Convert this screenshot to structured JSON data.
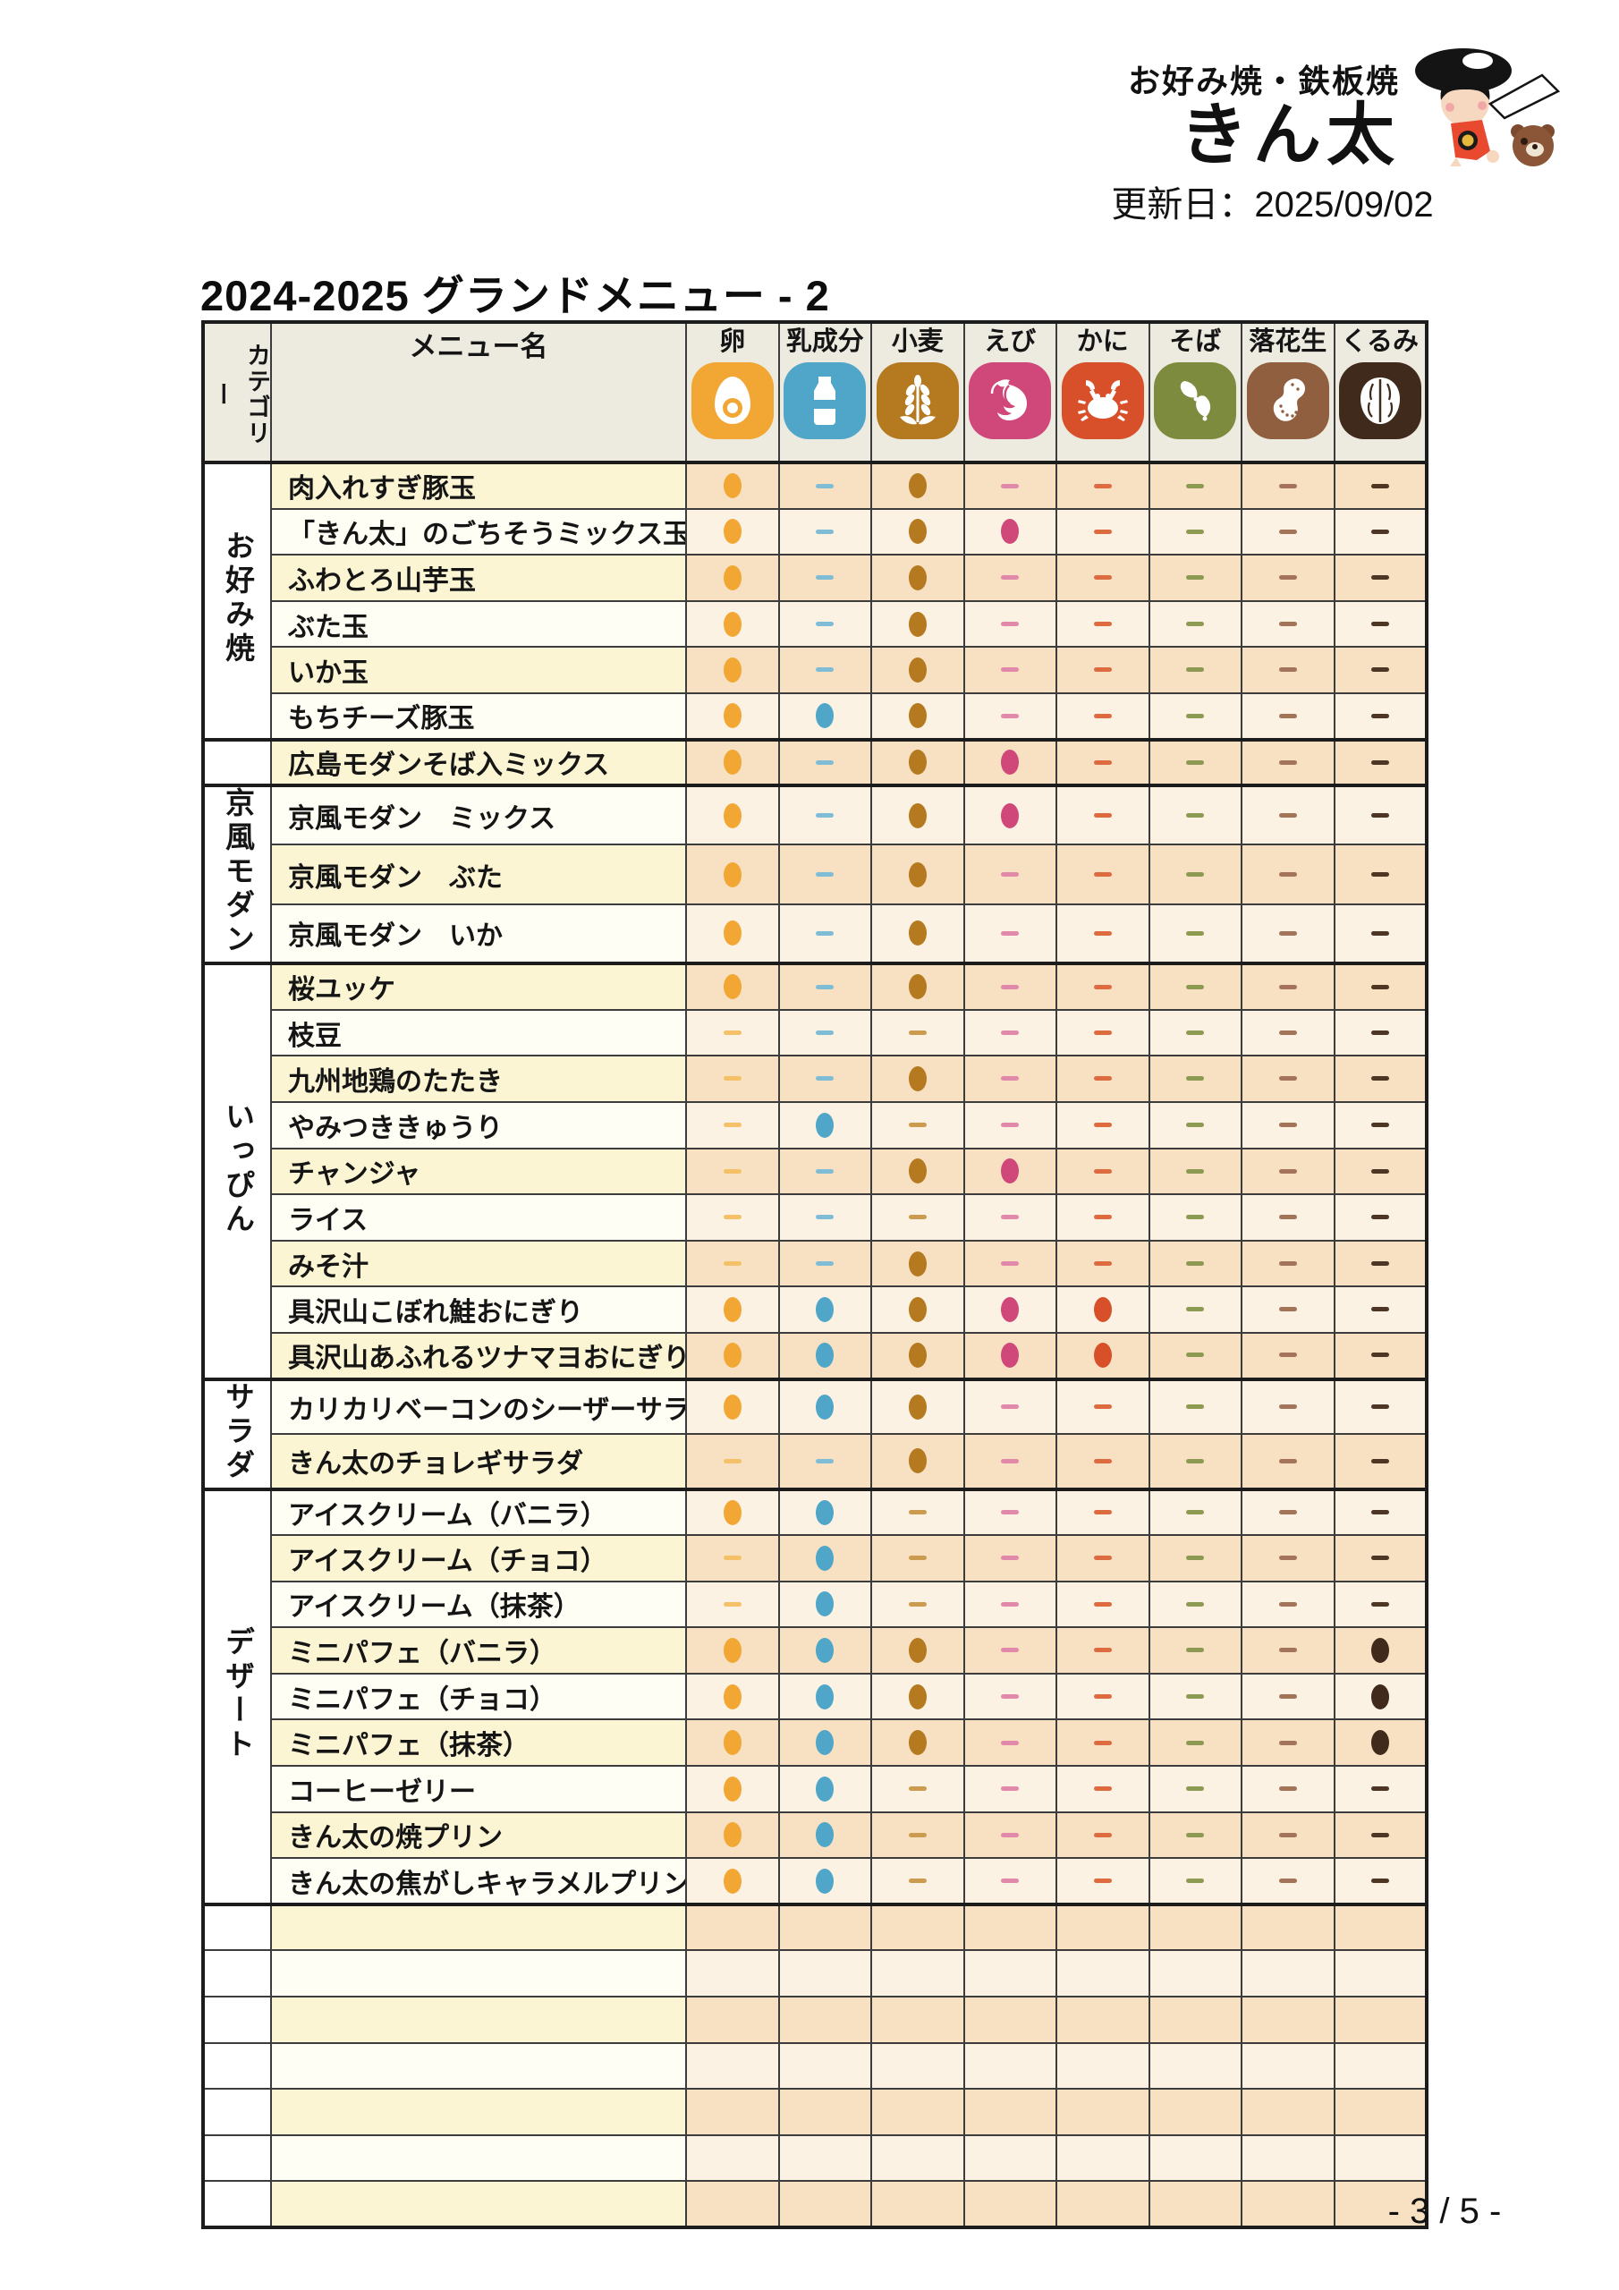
{
  "brand": {
    "subtitle": "お好み焼・鉄板焼",
    "name": "きん太",
    "updated": "更新日：2025/09/02"
  },
  "title": "2024-2025 グランドメニュー - 2",
  "table": {
    "category_header": "カテゴリー",
    "menu_header": "メニュー名",
    "allergens": [
      {
        "key": "egg",
        "label": "卵",
        "color": "#F2A735",
        "dash_color": "#F4C169"
      },
      {
        "key": "milk",
        "label": "乳成分",
        "color": "#4FA6C8",
        "dash_color": "#7FBDD7"
      },
      {
        "key": "wheat",
        "label": "小麦",
        "color": "#B5791F",
        "dash_color": "#CB9C50"
      },
      {
        "key": "shrimp",
        "label": "えび",
        "color": "#D0487A",
        "dash_color": "#E289AB"
      },
      {
        "key": "crab",
        "label": "かに",
        "color": "#D8502A",
        "dash_color": "#DD6B3F"
      },
      {
        "key": "soba",
        "label": "そば",
        "color": "#7C8B3D",
        "dash_color": "#8C9A52"
      },
      {
        "key": "peanut",
        "label": "落花生",
        "color": "#8F5F40",
        "dash_color": "#A3745A"
      },
      {
        "key": "walnut",
        "label": "くるみ",
        "color": "#402A1B",
        "dash_color": "#4E3624"
      }
    ],
    "groups": [
      {
        "category": "お好み焼",
        "items": [
          {
            "name": "肉入れすぎ豚玉",
            "marks": [
              "dot",
              "dash",
              "dot",
              "dash",
              "dash",
              "dash",
              "dash",
              "dash"
            ]
          },
          {
            "name": "「きん太」のごちそうミックス玉",
            "marks": [
              "dot",
              "dash",
              "dot",
              "dot",
              "dash",
              "dash",
              "dash",
              "dash"
            ]
          },
          {
            "name": "ふわとろ山芋玉",
            "marks": [
              "dot",
              "dash",
              "dot",
              "dash",
              "dash",
              "dash",
              "dash",
              "dash"
            ]
          },
          {
            "name": "ぶた玉",
            "marks": [
              "dot",
              "dash",
              "dot",
              "dash",
              "dash",
              "dash",
              "dash",
              "dash"
            ]
          },
          {
            "name": "いか玉",
            "marks": [
              "dot",
              "dash",
              "dot",
              "dash",
              "dash",
              "dash",
              "dash",
              "dash"
            ]
          },
          {
            "name": "もちチーズ豚玉",
            "marks": [
              "dot",
              "dot",
              "dot",
              "dash",
              "dash",
              "dash",
              "dash",
              "dash"
            ]
          }
        ]
      },
      {
        "category": "",
        "items": [
          {
            "name": "広島モダンそば入ミックス",
            "marks": [
              "dot",
              "dash",
              "dot",
              "dot",
              "dash",
              "dash",
              "dash",
              "dash"
            ]
          }
        ]
      },
      {
        "category": "京風モダン",
        "items": [
          {
            "name": "京風モダン　ミックス",
            "marks": [
              "dot",
              "dash",
              "dot",
              "dot",
              "dash",
              "dash",
              "dash",
              "dash"
            ]
          },
          {
            "name": "京風モダン　ぶた",
            "marks": [
              "dot",
              "dash",
              "dot",
              "dash",
              "dash",
              "dash",
              "dash",
              "dash"
            ]
          },
          {
            "name": "京風モダン　いか",
            "marks": [
              "dot",
              "dash",
              "dot",
              "dash",
              "dash",
              "dash",
              "dash",
              "dash"
            ]
          }
        ]
      },
      {
        "category": "いっぴん",
        "items": [
          {
            "name": "桜ユッケ",
            "marks": [
              "dot",
              "dash",
              "dot",
              "dash",
              "dash",
              "dash",
              "dash",
              "dash"
            ]
          },
          {
            "name": "枝豆",
            "marks": [
              "dash",
              "dash",
              "dash",
              "dash",
              "dash",
              "dash",
              "dash",
              "dash"
            ]
          },
          {
            "name": "九州地鶏のたたき",
            "marks": [
              "dash",
              "dash",
              "dot",
              "dash",
              "dash",
              "dash",
              "dash",
              "dash"
            ]
          },
          {
            "name": "やみつききゅうり",
            "marks": [
              "dash",
              "dot",
              "dash",
              "dash",
              "dash",
              "dash",
              "dash",
              "dash"
            ]
          },
          {
            "name": "チャンジャ",
            "marks": [
              "dash",
              "dash",
              "dot",
              "dot",
              "dash",
              "dash",
              "dash",
              "dash"
            ]
          },
          {
            "name": "ライス",
            "marks": [
              "dash",
              "dash",
              "dash",
              "dash",
              "dash",
              "dash",
              "dash",
              "dash"
            ]
          },
          {
            "name": "みそ汁",
            "marks": [
              "dash",
              "dash",
              "dot",
              "dash",
              "dash",
              "dash",
              "dash",
              "dash"
            ]
          },
          {
            "name": "具沢山こぼれ鮭おにぎり",
            "marks": [
              "dot",
              "dot",
              "dot",
              "dot",
              "dot",
              "dash",
              "dash",
              "dash"
            ]
          },
          {
            "name": "具沢山あふれるツナマヨおにぎり",
            "marks": [
              "dot",
              "dot",
              "dot",
              "dot",
              "dot",
              "dash",
              "dash",
              "dash"
            ]
          }
        ]
      },
      {
        "category": "サラダ",
        "items": [
          {
            "name": "カリカリベーコンのシーザーサラダ",
            "marks": [
              "dot",
              "dot",
              "dot",
              "dash",
              "dash",
              "dash",
              "dash",
              "dash"
            ]
          },
          {
            "name": "きん太のチョレギサラダ",
            "marks": [
              "dash",
              "dash",
              "dot",
              "dash",
              "dash",
              "dash",
              "dash",
              "dash"
            ]
          }
        ]
      },
      {
        "category": "デザート",
        "items": [
          {
            "name": "アイスクリーム（バニラ）",
            "marks": [
              "dot",
              "dot",
              "dash",
              "dash",
              "dash",
              "dash",
              "dash",
              "dash"
            ]
          },
          {
            "name": "アイスクリーム（チョコ）",
            "marks": [
              "dash",
              "dot",
              "dash",
              "dash",
              "dash",
              "dash",
              "dash",
              "dash"
            ]
          },
          {
            "name": "アイスクリーム（抹茶）",
            "marks": [
              "dash",
              "dot",
              "dash",
              "dash",
              "dash",
              "dash",
              "dash",
              "dash"
            ]
          },
          {
            "name": "ミニパフェ（バニラ）",
            "marks": [
              "dot",
              "dot",
              "dot",
              "dash",
              "dash",
              "dash",
              "dash",
              "dot"
            ]
          },
          {
            "name": "ミニパフェ（チョコ）",
            "marks": [
              "dot",
              "dot",
              "dot",
              "dash",
              "dash",
              "dash",
              "dash",
              "dot"
            ]
          },
          {
            "name": "ミニパフェ（抹茶）",
            "marks": [
              "dot",
              "dot",
              "dot",
              "dash",
              "dash",
              "dash",
              "dash",
              "dot"
            ]
          },
          {
            "name": "コーヒーゼリー",
            "marks": [
              "dot",
              "dot",
              "dash",
              "dash",
              "dash",
              "dash",
              "dash",
              "dash"
            ]
          },
          {
            "name": "きん太の焼プリン",
            "marks": [
              "dot",
              "dot",
              "dash",
              "dash",
              "dash",
              "dash",
              "dash",
              "dash"
            ]
          },
          {
            "name": "きん太の焦がしキャラメルプリン",
            "marks": [
              "dot",
              "dot",
              "dash",
              "dash",
              "dash",
              "dash",
              "dash",
              "dash"
            ]
          }
        ]
      }
    ],
    "empty_rows": 7
  },
  "footer": {
    "page": "- 3 / 5 -"
  }
}
